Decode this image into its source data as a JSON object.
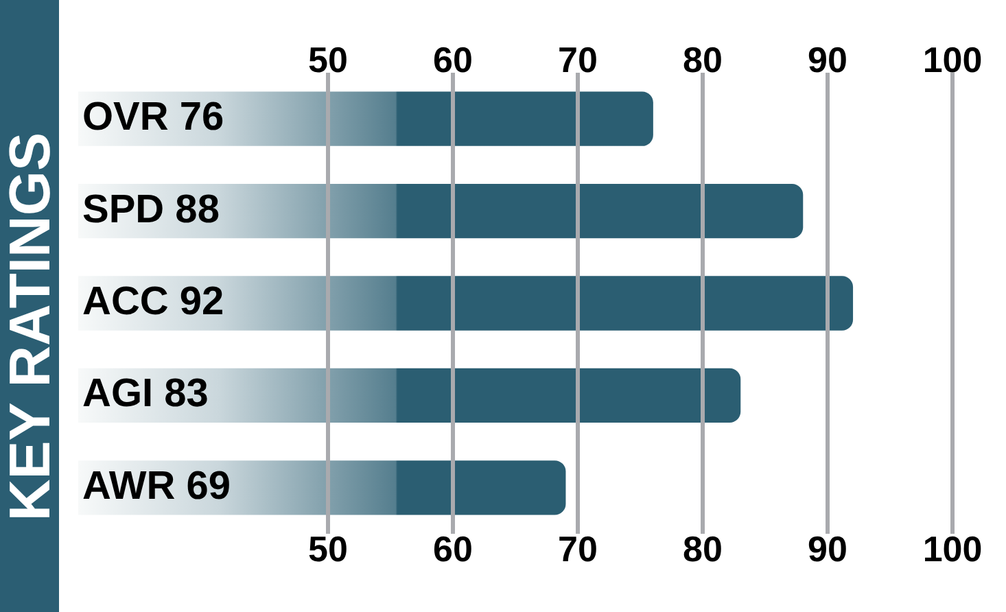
{
  "chart_data": {
    "type": "bar",
    "orientation": "horizontal",
    "title": "KEY RATINGS",
    "categories": [
      "OVR 76",
      "SPD 88",
      "ACC 92",
      "AGI 83",
      "AWR 69"
    ],
    "values": [
      76,
      88,
      92,
      83,
      69
    ],
    "color": "#2b5e72",
    "xlim": [
      30,
      100
    ],
    "xticks": [
      50,
      60,
      70,
      80,
      90,
      100
    ],
    "x2lim": [
      30,
      100
    ],
    "x2ticks": [
      50,
      60,
      70,
      80,
      90,
      100
    ],
    "grid": "x"
  }
}
